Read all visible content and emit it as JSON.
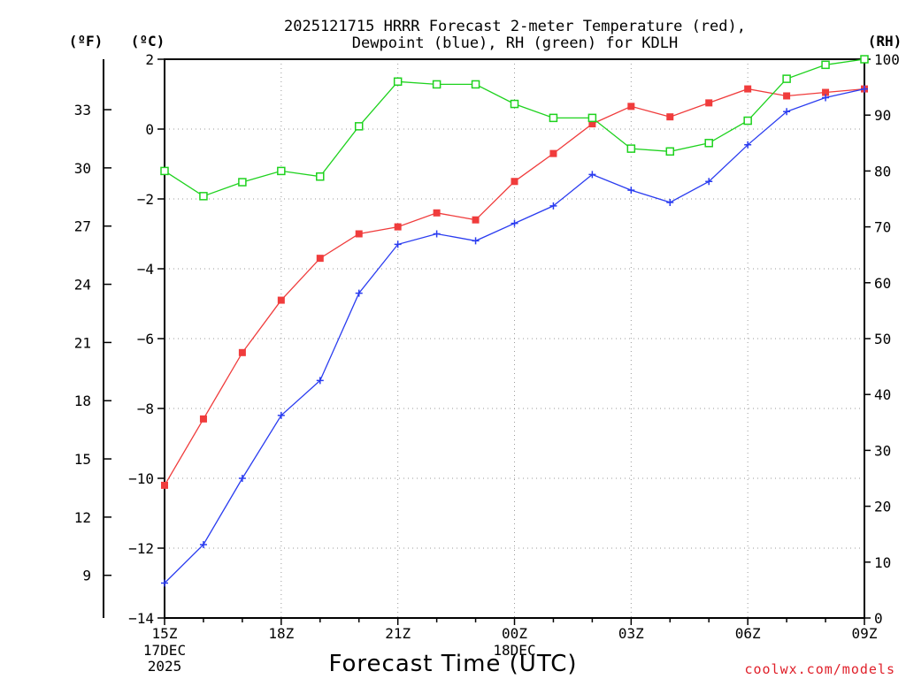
{
  "chart_data": {
    "type": "line",
    "title_line1": "2025121715 HRRR Forecast 2-meter Temperature (red),",
    "title_line2": "Dewpoint (blue), RH (green) for KDLH",
    "xlabel": "Forecast Time (UTC)",
    "watermark": "coolwx.com/models",
    "unit_labels": {
      "fahrenheit": "(ºF)",
      "celsius": "(ºC)",
      "rh": "(RH)"
    },
    "x_hours": [
      0,
      1,
      2,
      3,
      4,
      5,
      6,
      7,
      8,
      9,
      10,
      11,
      12,
      13,
      14,
      15,
      16,
      17,
      18
    ],
    "xlim": [
      0,
      18
    ],
    "x_ticks": [
      {
        "hour": 0,
        "label": "15Z"
      },
      {
        "hour": 3,
        "label": "18Z"
      },
      {
        "hour": 6,
        "label": "21Z"
      },
      {
        "hour": 9,
        "label": "00Z"
      },
      {
        "hour": 12,
        "label": "03Z"
      },
      {
        "hour": 15,
        "label": "06Z"
      },
      {
        "hour": 18,
        "label": "09Z"
      }
    ],
    "date_labels": [
      {
        "hour": 0,
        "lines": [
          "17DEC",
          "2025"
        ]
      },
      {
        "hour": 9,
        "lines": [
          "18DEC"
        ]
      }
    ],
    "celsius_axis": {
      "ylim": [
        -14,
        2
      ],
      "ticks": [
        "2",
        "0",
        "−2",
        "−4",
        "−6",
        "−8",
        "−10",
        "−12",
        "−14"
      ]
    },
    "fahrenheit_axis": {
      "ylim": [
        6.8,
        35.6
      ],
      "ticks": [
        "33",
        "30",
        "27",
        "24",
        "21",
        "18",
        "15",
        "12",
        "9"
      ]
    },
    "rh_axis": {
      "ylim": [
        0,
        100
      ],
      "ticks": [
        "100",
        "90",
        "80",
        "70",
        "60",
        "50",
        "40",
        "30",
        "20",
        "10",
        "0"
      ]
    },
    "series": [
      {
        "name": "Temperature",
        "axis": "celsius",
        "color": "#f03c3c",
        "marker": "filled-square",
        "values": [
          -10.2,
          -8.3,
          -6.4,
          -4.9,
          -3.7,
          -3.0,
          -2.8,
          -2.4,
          -2.6,
          -1.5,
          -0.7,
          0.15,
          0.65,
          0.35,
          0.75,
          1.15,
          0.95,
          1.05,
          1.15
        ]
      },
      {
        "name": "Dewpoint",
        "axis": "celsius",
        "color": "#2a3cf0",
        "marker": "plus",
        "values": [
          -13.0,
          -11.9,
          -10.0,
          -8.2,
          -7.2,
          -4.7,
          -3.3,
          -3.0,
          -3.2,
          -2.7,
          -2.2,
          -1.3,
          -1.75,
          -2.1,
          -1.5,
          -0.45,
          0.5,
          0.9,
          1.15
        ]
      },
      {
        "name": "RH",
        "axis": "rh",
        "color": "#1ed21e",
        "marker": "open-square",
        "values": [
          80,
          75.5,
          78,
          80,
          79,
          88,
          96,
          95.5,
          95.5,
          92,
          89.5,
          89.5,
          84,
          83.5,
          85,
          89,
          96.5,
          99,
          100
        ]
      }
    ]
  }
}
